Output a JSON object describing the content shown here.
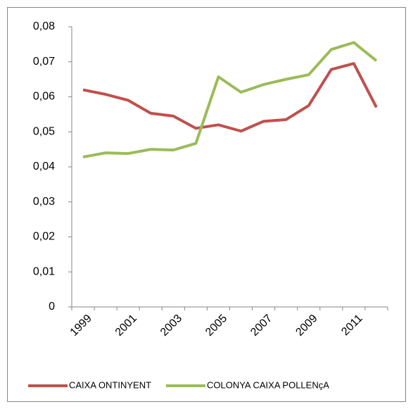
{
  "chart_data": {
    "type": "line",
    "categories": [
      "1999",
      null,
      "2001",
      null,
      "2003",
      null,
      "2005",
      null,
      "2007",
      null,
      "2009",
      null,
      "2011",
      null
    ],
    "series": [
      {
        "name": "CAIXA ONTINYENT",
        "color": "#c0504d",
        "values": [
          0.062,
          0.0607,
          0.059,
          0.0553,
          0.0545,
          0.051,
          0.052,
          0.0502,
          0.053,
          0.0535,
          0.0575,
          0.0678,
          0.0695,
          0.057
        ]
      },
      {
        "name": "COLONYA CAIXA POLLENçA",
        "color": "#9bbb59",
        "values": [
          0.0428,
          0.044,
          0.0438,
          0.045,
          0.0448,
          0.0467,
          0.0657,
          0.0613,
          0.0635,
          0.065,
          0.0663,
          0.0735,
          0.0755,
          0.0703
        ]
      }
    ],
    "ylim": [
      0,
      0.08
    ],
    "yticks": [
      0,
      {
        "value": 0.01,
        "label": "0,01"
      },
      {
        "value": 0.02,
        "label": "0,02"
      },
      {
        "value": 0.03,
        "label": "0,03"
      },
      {
        "value": 0.04,
        "label": "0,04"
      },
      {
        "value": 0.05,
        "label": "0,05"
      },
      {
        "value": 0.06,
        "label": "0,06"
      },
      {
        "value": 0.07,
        "label": "0,07"
      },
      {
        "value": 0.08,
        "label": "0,08"
      }
    ],
    "legend": "bottom"
  }
}
